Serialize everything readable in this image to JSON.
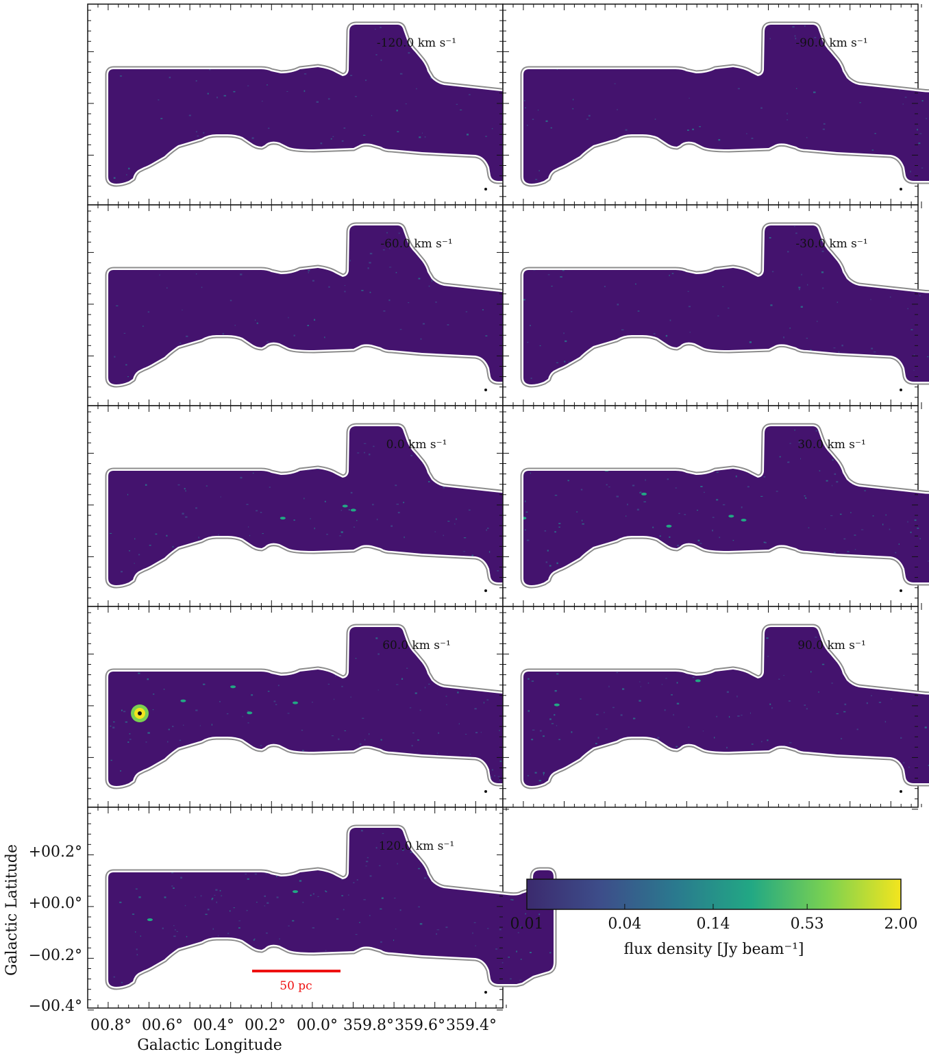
{
  "chart_data": {
    "type": "heatmap",
    "title": "",
    "xlabel": "Galactic Longitude",
    "ylabel": "Galactic Latitude",
    "x_ticks": [
      "00.8°",
      "00.6°",
      "00.4°",
      "00.2°",
      "00.0°",
      "359.8°",
      "359.6°",
      "359.4°"
    ],
    "y_ticks": [
      "+00.2°",
      "+00.0°",
      "−00.2°",
      "−00.4°"
    ],
    "panels": [
      {
        "velocity_label": "-120.0 km s⁻¹",
        "velocity_kms": -120.0
      },
      {
        "velocity_label": "-90.0 km s⁻¹",
        "velocity_kms": -90.0
      },
      {
        "velocity_label": "-60.0 km s⁻¹",
        "velocity_kms": -60.0
      },
      {
        "velocity_label": "-30.0 km s⁻¹",
        "velocity_kms": -30.0
      },
      {
        "velocity_label": "0.0 km s⁻¹",
        "velocity_kms": 0.0
      },
      {
        "velocity_label": "30.0 km s⁻¹",
        "velocity_kms": 30.0
      },
      {
        "velocity_label": "60.0 km s⁻¹",
        "velocity_kms": 60.0
      },
      {
        "velocity_label": "90.0 km s⁻¹",
        "velocity_kms": 90.0
      },
      {
        "velocity_label": "120.0 km s⁻¹",
        "velocity_kms": 120.0
      }
    ],
    "colorbar": {
      "label": "flux density [Jy beam⁻¹]",
      "ticks": [
        "0.01",
        "0.04",
        "0.14",
        "0.53",
        "2.00"
      ],
      "colormap": "viridis",
      "scale": "log",
      "range": [
        0.01,
        2.0
      ]
    },
    "scalebar_label": "50 pc",
    "colors": {
      "background_field": "#44136e",
      "footprint_outline": "#8c8c8c",
      "scalebar": "#ee1111"
    }
  }
}
